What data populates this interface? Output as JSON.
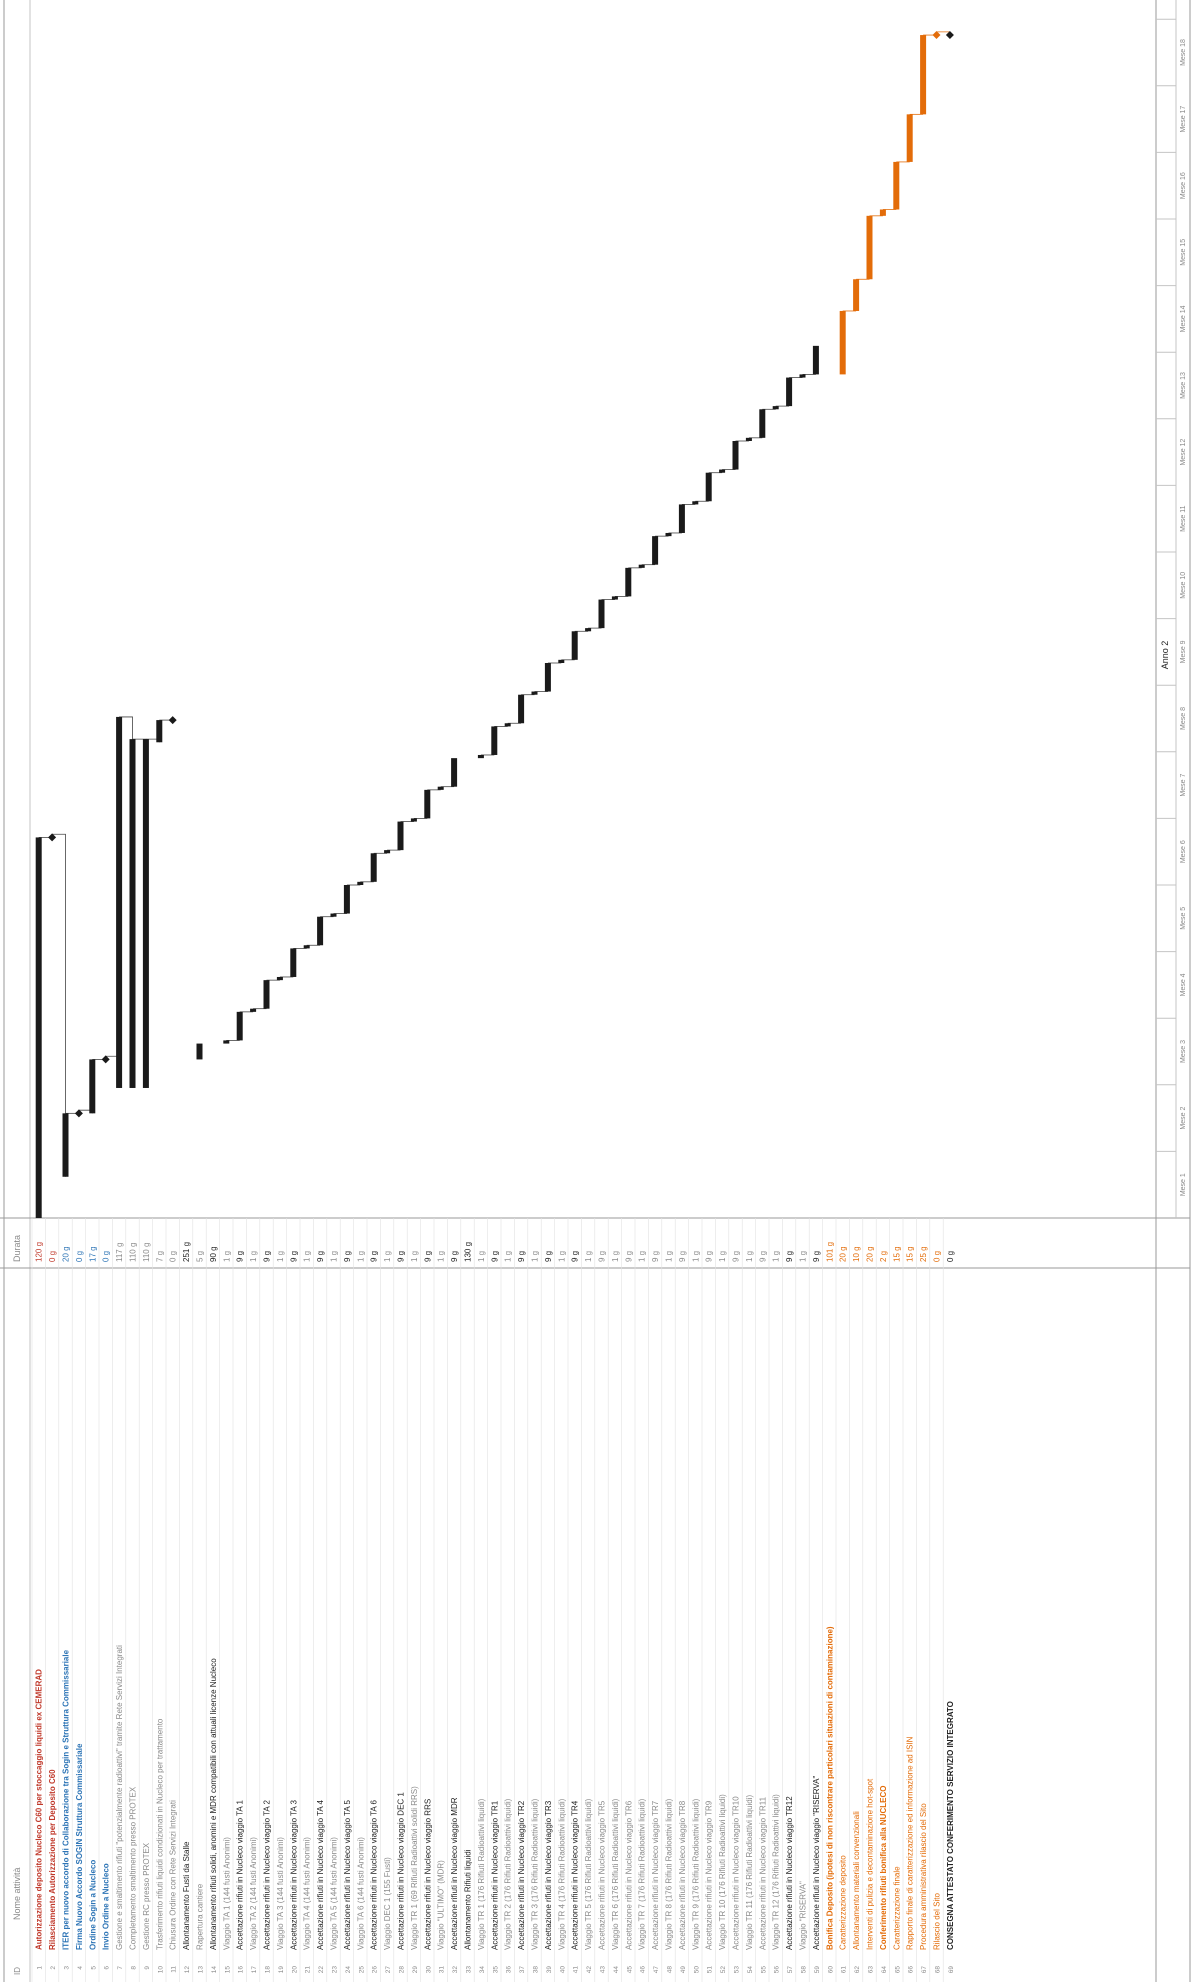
{
  "gantt": {
    "columns": {
      "id": "ID",
      "name": "Nome attività",
      "duration": "Durata"
    },
    "header": {
      "year": "Anno 2",
      "months": [
        "Mese 1",
        "Mese 2",
        "Mese 3",
        "Mese 4",
        "Mese 5",
        "Mese 6",
        "Mese 7",
        "Mese 8",
        "Mese 9",
        "Mese 10",
        "Mese 11",
        "Mese 12",
        "Mese 13",
        "Mese 14",
        "Mese 15",
        "Mese 16",
        "Mese 17",
        "Mese 18"
      ]
    },
    "colors": {
      "red": "#c0392b",
      "blue": "#2e75b6",
      "orange": "#e36c09",
      "dark": "#222222",
      "grey": "#8a8a8a",
      "bar_dark": "#1a1a1a",
      "bar_orange": "#e36c09"
    },
    "tasks": [
      {
        "id": "1",
        "name": "Autorizzazione deposito Nucleco C60 per stoccaggio liquidi ex CEMERAD",
        "duration": "120 g",
        "style": "red",
        "bar": [
          1,
          120
        ]
      },
      {
        "id": "2",
        "name": "Rilasciamento Autorizzazione per Deposito C60",
        "duration": "0 g",
        "style": "red",
        "bar": [
          121,
          121
        ]
      },
      {
        "id": "3",
        "name": "ITER per nuovo accordo di Collaborazione tra Sogin e Struttura Commissariale",
        "duration": "20 g",
        "style": "blue",
        "bar": [
          14,
          33
        ]
      },
      {
        "id": "4",
        "name": "Firma Nuovo Accordo SOGIN Struttura Commissariale",
        "duration": "0 g",
        "style": "blue",
        "bar": [
          34,
          34
        ]
      },
      {
        "id": "5",
        "name": "Ordine Sogin a Nucleco",
        "duration": "17 g",
        "style": "blue",
        "bar": [
          34,
          50
        ]
      },
      {
        "id": "6",
        "name": "Invio Ordine a Nucleco",
        "duration": "0 g",
        "style": "blue",
        "bar": [
          51,
          51
        ]
      },
      {
        "id": "7",
        "name": "Gestione e smaltimento rifiuti \"potenzialmente radioattivi\" tramite Rete Servizi Integrati",
        "duration": "117 g",
        "style": "grey",
        "bar": [
          42,
          158
        ]
      },
      {
        "id": "8",
        "name": "Completamento smaltimento presso PROTEX",
        "duration": "110 g",
        "style": "grey",
        "bar": [
          42,
          151
        ]
      },
      {
        "id": "9",
        "name": "Gestione RC presso PROTEX",
        "duration": "110 g",
        "style": "grey",
        "bar": [
          42,
          151
        ]
      },
      {
        "id": "10",
        "name": "Trasferimento rifiuti liquidi condizionati in Nucleco per trattamento",
        "duration": "7 g",
        "style": "grey",
        "bar": [
          151,
          157
        ]
      },
      {
        "id": "11",
        "name": "Chiusura Ordine con Rete Servizi Integrati",
        "duration": "0 g",
        "style": "grey",
        "bar": [
          158,
          158
        ]
      },
      {
        "id": "12",
        "name": "Allontanamento Fusti da Stalle",
        "duration": "251 g",
        "style": "dark",
        "bar": []
      },
      {
        "id": "13",
        "name": "Rapertura cantiere",
        "duration": "5 g",
        "style": "grey",
        "bar": [
          51,
          55
        ]
      },
      {
        "id": "14",
        "name": "Allontanamento rifiuti solidi, anomini e MDR compatibili con attuali licenze Nucleco",
        "duration": "90 g",
        "style": "dark",
        "bar": []
      },
      {
        "id": "15",
        "name": "Viaggio TA 1 (144 fusti Anonimi)",
        "duration": "1 g",
        "style": "grey",
        "bar": [
          56,
          56
        ]
      },
      {
        "id": "16",
        "name": "Accettazione rifiuti in Nucleco viaggio TA 1",
        "duration": "9 g",
        "style": "dark",
        "bar": [
          57,
          65
        ]
      },
      {
        "id": "17",
        "name": "Viaggio TA 2 (144 fusti Anonimi)",
        "duration": "1 g",
        "style": "grey",
        "bar": [
          66,
          66
        ]
      },
      {
        "id": "18",
        "name": "Accettazione rifiuti in Nucleco viaggio TA 2",
        "duration": "9 g",
        "style": "dark",
        "bar": [
          67,
          75
        ]
      },
      {
        "id": "19",
        "name": "Viaggio TA 3 (144 fusti Anonimi)",
        "duration": "1 g",
        "style": "grey",
        "bar": [
          76,
          76
        ]
      },
      {
        "id": "20",
        "name": "Accettazione rifiuti in Nucleco viaggio TA 3",
        "duration": "9 g",
        "style": "dark",
        "bar": [
          77,
          85
        ]
      },
      {
        "id": "21",
        "name": "Viaggio TA 4 (144 fusti Anonimi)",
        "duration": "1 g",
        "style": "grey",
        "bar": [
          86,
          86
        ]
      },
      {
        "id": "22",
        "name": "Accettazione rifiuti in Nucleco viaggio TA 4",
        "duration": "9 g",
        "style": "dark",
        "bar": [
          87,
          95
        ]
      },
      {
        "id": "23",
        "name": "Viaggio TA 5 (144 fusti Anonimi)",
        "duration": "1 g",
        "style": "grey",
        "bar": [
          96,
          96
        ]
      },
      {
        "id": "24",
        "name": "Accettazione rifiuti in Nucleco viaggio TA 5",
        "duration": "9 g",
        "style": "dark",
        "bar": [
          97,
          105
        ]
      },
      {
        "id": "25",
        "name": "Viaggio TA 6 (144 fusti Anonimi)",
        "duration": "1 g",
        "style": "grey",
        "bar": [
          106,
          106
        ]
      },
      {
        "id": "26",
        "name": "Accettazione rifiuti in Nucleco viaggio TA 6",
        "duration": "9 g",
        "style": "dark",
        "bar": [
          107,
          115
        ]
      },
      {
        "id": "27",
        "name": "Viaggio DEC 1 (155 Fusti)",
        "duration": "1 g",
        "style": "grey",
        "bar": [
          116,
          116
        ]
      },
      {
        "id": "28",
        "name": "Accettazione rifiuti in Nucleco viaggio DEC 1",
        "duration": "9 g",
        "style": "dark",
        "bar": [
          117,
          125
        ]
      },
      {
        "id": "29",
        "name": "Viaggio TR 1 (69 Rifiuti Radioattivi solidi RRS)",
        "duration": "1 g",
        "style": "grey",
        "bar": [
          126,
          126
        ]
      },
      {
        "id": "30",
        "name": "Accettazione rifiuti in Nucleco viaggio RRS",
        "duration": "9 g",
        "style": "dark",
        "bar": [
          127,
          135
        ]
      },
      {
        "id": "31",
        "name": "Viaggio \"ULTIMO\" (MDR)",
        "duration": "1 g",
        "style": "grey",
        "bar": [
          136,
          136
        ]
      },
      {
        "id": "32",
        "name": "Accettazione rifiuti in Nucleco viaggio MDR",
        "duration": "9 g",
        "style": "dark",
        "bar": [
          137,
          145
        ]
      },
      {
        "id": "33",
        "name": "Allontanamento Rifiuti liquidi",
        "duration": "130 g",
        "style": "dark",
        "bar": []
      },
      {
        "id": "34",
        "name": "Viaggio TR 1 (176 Rifiuti Radioattivi liquidi)",
        "duration": "1 g",
        "style": "grey",
        "bar": [
          146,
          146
        ]
      },
      {
        "id": "35",
        "name": "Accettazione rifiuti in Nucleco viaggio TR1",
        "duration": "9 g",
        "style": "dark",
        "bar": [
          147,
          155
        ]
      },
      {
        "id": "36",
        "name": "Viaggio TR 2 (176 Rifiuti Radioattivi liquidi)",
        "duration": "1 g",
        "style": "grey",
        "bar": [
          156,
          156
        ]
      },
      {
        "id": "37",
        "name": "Accettazione rifiuti in Nucleco viaggio TR2",
        "duration": "9 g",
        "style": "dark",
        "bar": [
          157,
          165
        ]
      },
      {
        "id": "38",
        "name": "Viaggio TR 3 (176 Rifiuti Radioattivi liquidi)",
        "duration": "1 g",
        "style": "grey",
        "bar": [
          166,
          166
        ]
      },
      {
        "id": "39",
        "name": "Accettazione rifiuti in Nucleco viaggio TR3",
        "duration": "9 g",
        "style": "dark",
        "bar": [
          167,
          175
        ]
      },
      {
        "id": "40",
        "name": "Viaggio TR 4 (176 Rifiuti Radioattivi liquidi)",
        "duration": "1 g",
        "style": "grey",
        "bar": [
          176,
          176
        ]
      },
      {
        "id": "41",
        "name": "Accettazione rifiuti in Nucleco viaggio TR4",
        "duration": "9 g",
        "style": "dark",
        "bar": [
          177,
          185
        ]
      },
      {
        "id": "42",
        "name": "Viaggio TR 5 (176 Rifiuti Radioattivi liquidi)",
        "duration": "1 g",
        "style": "grey",
        "bar": [
          186,
          186
        ]
      },
      {
        "id": "43",
        "name": "Accettazione rifiuti in Nucleco viaggio TR5",
        "duration": "9 g",
        "style": "grey",
        "bar": [
          187,
          195
        ]
      },
      {
        "id": "44",
        "name": "Viaggio TR 6 (176 Rifiuti Radioattivi liquidi)",
        "duration": "1 g",
        "style": "grey",
        "bar": [
          196,
          196
        ]
      },
      {
        "id": "45",
        "name": "Accettazione rifiuti in Nucleco viaggio TR6",
        "duration": "9 g",
        "style": "grey",
        "bar": [
          197,
          205
        ]
      },
      {
        "id": "46",
        "name": "Viaggio TR 7 (176 Rifiuti Radioattivi liquidi)",
        "duration": "1 g",
        "style": "grey",
        "bar": [
          206,
          206
        ]
      },
      {
        "id": "47",
        "name": "Accettazione rifiuti in Nucleco viaggio TR7",
        "duration": "9 g",
        "style": "grey",
        "bar": [
          207,
          215
        ]
      },
      {
        "id": "48",
        "name": "Viaggio TR 8 (176 Rifiuti Radioattivi liquidi)",
        "duration": "1 g",
        "style": "grey",
        "bar": [
          216,
          216
        ]
      },
      {
        "id": "49",
        "name": "Accettazione rifiuti in Nucleco viaggio TR8",
        "duration": "9 g",
        "style": "grey",
        "bar": [
          217,
          225
        ]
      },
      {
        "id": "50",
        "name": "Viaggio TR 9 (176 Rifiuti Radioattivi liquidi)",
        "duration": "1 g",
        "style": "grey",
        "bar": [
          226,
          226
        ]
      },
      {
        "id": "51",
        "name": "Accettazione rifiuti in Nucleco viaggio TR9",
        "duration": "9 g",
        "style": "grey",
        "bar": [
          227,
          235
        ]
      },
      {
        "id": "52",
        "name": "Viaggio TR 10 (176 Rifiuti Radioattivi liquidi)",
        "duration": "1 g",
        "style": "grey",
        "bar": [
          236,
          236
        ]
      },
      {
        "id": "53",
        "name": "Accettazione rifiuti in Nucleco viaggio TR10",
        "duration": "9 g",
        "style": "grey",
        "bar": [
          237,
          245
        ]
      },
      {
        "id": "54",
        "name": "Viaggio TR 11 (176 Rifiuti Radioattivi liquidi)",
        "duration": "1 g",
        "style": "grey",
        "bar": [
          246,
          246
        ]
      },
      {
        "id": "55",
        "name": "Accettazione rifiuti in Nucleco viaggio TR11",
        "duration": "9 g",
        "style": "grey",
        "bar": [
          247,
          255
        ]
      },
      {
        "id": "56",
        "name": "Viaggio TR 12 (176 Rifiuti Radioattivi liquidi)",
        "duration": "1 g",
        "style": "grey",
        "bar": [
          256,
          256
        ]
      },
      {
        "id": "57",
        "name": "Accettazione rifiuti in Nucleco viaggio TR12",
        "duration": "9 g",
        "style": "dark",
        "bar": [
          257,
          265
        ]
      },
      {
        "id": "58",
        "name": "Viaggio \"RISERVA\"",
        "duration": "1 g",
        "style": "grey",
        "bar": [
          266,
          266
        ]
      },
      {
        "id": "59",
        "name": "Accettazione rifiuti in Nucleco viaggio \"RISERVA\"",
        "duration": "9 g",
        "style": "dark",
        "bar": [
          267,
          275
        ]
      },
      {
        "id": "60",
        "name": "Bonifica Deposito (ipotesi di non riscontrare particolari situazioni di contaminazione)",
        "duration": "101 g",
        "style": "orange",
        "bar": []
      },
      {
        "id": "61",
        "name": "Caratterizzazione deposito",
        "duration": "20 g",
        "style": "orange",
        "bar": [
          267,
          286
        ]
      },
      {
        "id": "62",
        "name": "Allontanamento materiali convenzionali",
        "duration": "10 g",
        "style": "orange",
        "bar": [
          287,
          296
        ]
      },
      {
        "id": "63",
        "name": "Interventi di pulizia e decontaminazione hot-spot",
        "duration": "20 g",
        "style": "orange",
        "bar": [
          297,
          316
        ]
      },
      {
        "id": "64",
        "name": "Conferimento rifiuti bonifica alla NUCLECO",
        "duration": "2 g",
        "style": "orange",
        "bar": [
          317,
          318
        ]
      },
      {
        "id": "65",
        "name": "Caratterizzazione finale",
        "duration": "15 g",
        "style": "orange",
        "bar": [
          319,
          333
        ]
      },
      {
        "id": "66",
        "name": "Rapporto finale di caratterizzazione ed informazione ad ISIN",
        "duration": "15 g",
        "style": "orange",
        "bar": [
          334,
          348
        ]
      },
      {
        "id": "67",
        "name": "Procedura amministrativa rilascio del Sito",
        "duration": "25 g",
        "style": "orange",
        "bar": [
          349,
          373
        ]
      },
      {
        "id": "68",
        "name": "Rilascio del Sito",
        "duration": "0 g",
        "style": "orange",
        "bar": [
          374,
          374
        ]
      },
      {
        "id": "69",
        "name": "CONSEGNA ATTESTATO CONFERIMENTO SERVIZIO INTEGRATO",
        "duration": "0 g",
        "style": "dark",
        "bar": [
          374,
          374
        ]
      }
    ]
  }
}
